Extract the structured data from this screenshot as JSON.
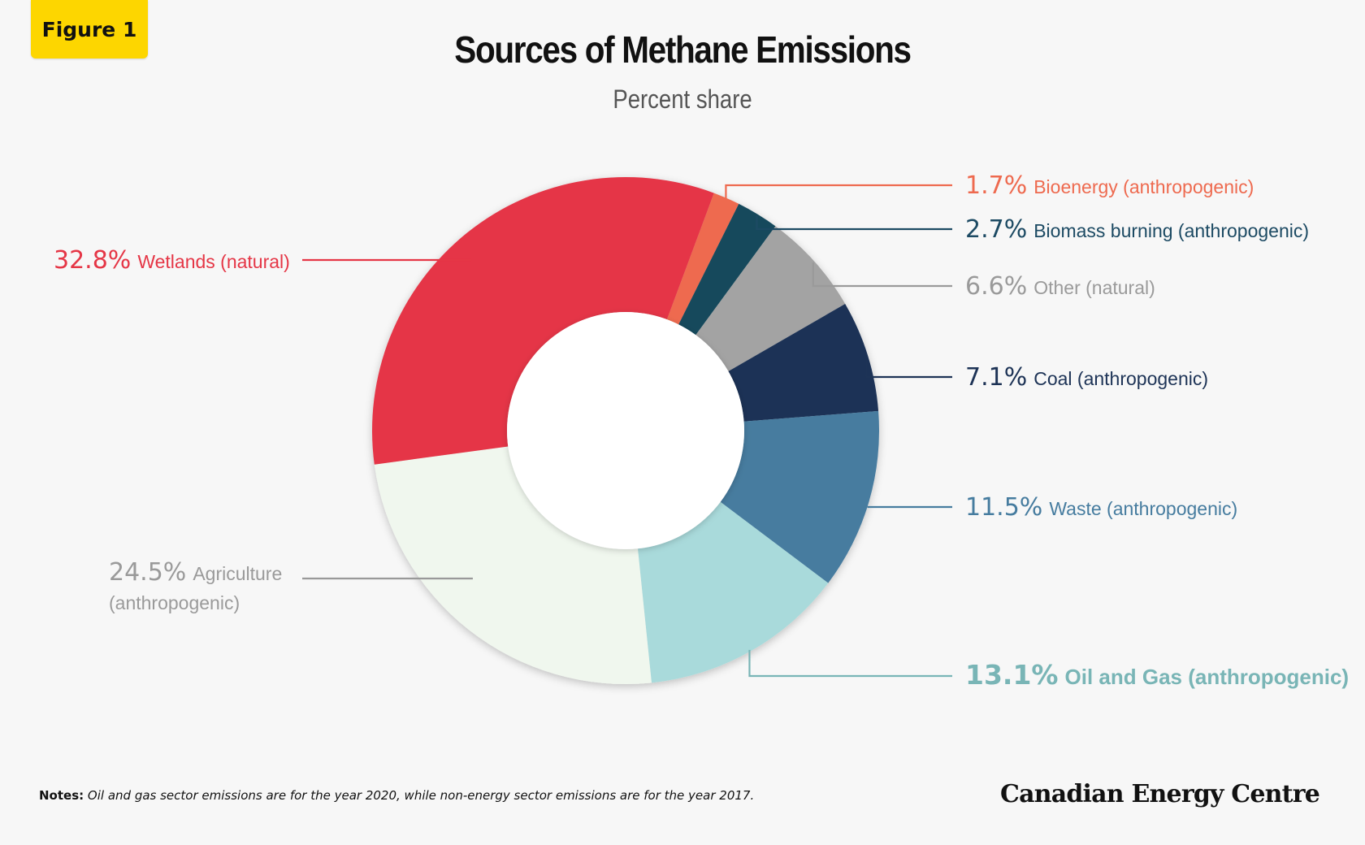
{
  "figure_label": "Figure 1",
  "footer": {
    "notes_label": "Notes:",
    "notes_text": "Oil and gas sector emissions are for the year 2020, while non-energy sector emissions are for the year 2017.",
    "brand": "Canadian Energy Centre"
  },
  "chart_data": {
    "type": "pie",
    "title": "Sources of Methane Emissions",
    "subtitle": "Percent share",
    "donut": true,
    "slices": [
      {
        "label": "Bioenergy (anthropogenic)",
        "value": 1.7,
        "display": "1.7%",
        "color": "#ee6a4f",
        "label_color": "#ee6a4f",
        "side": "right"
      },
      {
        "label": "Biomass burning (anthropogenic)",
        "value": 2.7,
        "display": "2.7%",
        "color": "#134a5c",
        "label_color": "#1c4a63",
        "side": "right"
      },
      {
        "label": "Other (natural)",
        "value": 6.6,
        "display": "6.6%",
        "color": "#a3a3a3",
        "label_color": "#9a9a9a",
        "side": "right"
      },
      {
        "label": "Coal (anthropogenic)",
        "value": 7.1,
        "display": "7.1%",
        "color": "#1d3356",
        "label_color": "#1d3356",
        "side": "right"
      },
      {
        "label": "Waste (anthropogenic)",
        "value": 11.5,
        "display": "11.5%",
        "color": "#467c9f",
        "label_color": "#467c9f",
        "side": "right"
      },
      {
        "label": "Oil and Gas (anthropogenic)",
        "value": 13.1,
        "display": "13.1%",
        "color": "#a9dadb",
        "label_color": "#79b5b6",
        "side": "right",
        "emphasis": true
      },
      {
        "label": "Agriculture (anthropogenic)",
        "label_lines": [
          "Agriculture",
          "(anthropogenic)"
        ],
        "value": 24.5,
        "display": "24.5%",
        "color": "#f0f7ee",
        "label_color": "#9a9a9a",
        "side": "left"
      },
      {
        "label": "Wetlands (natural)",
        "value": 32.8,
        "display": "32.8%",
        "color": "#e53646",
        "label_color": "#e53646",
        "side": "left"
      }
    ]
  }
}
